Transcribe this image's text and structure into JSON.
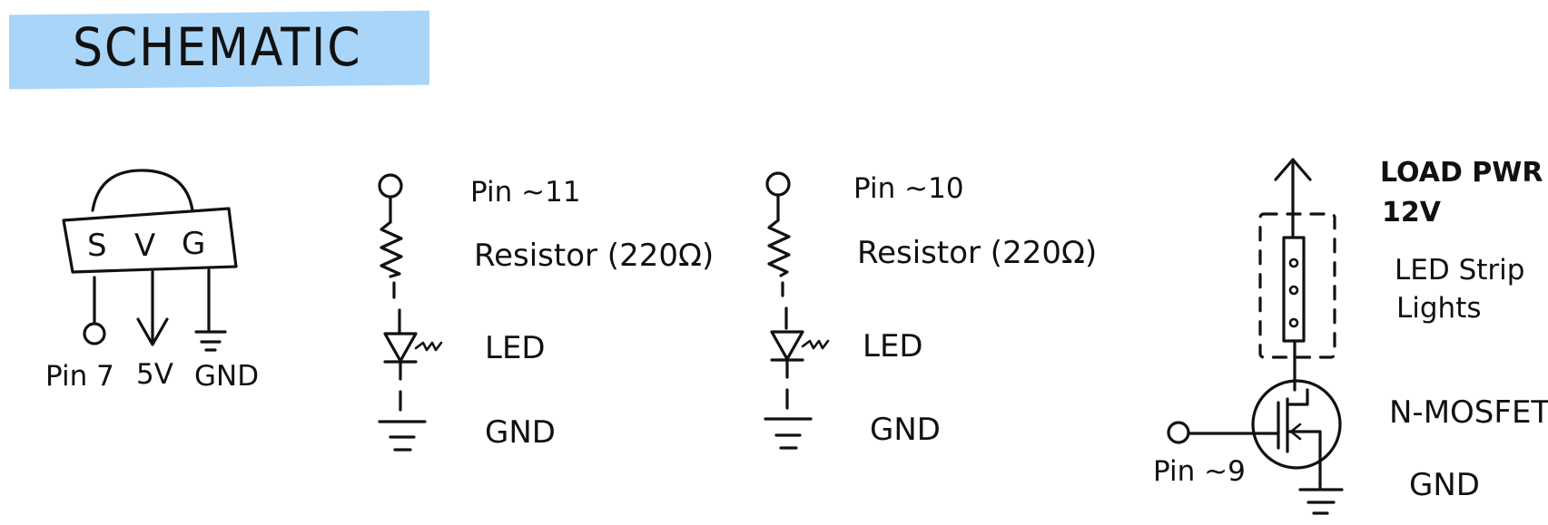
{
  "title": "SCHEMATIC",
  "sensor": {
    "pins": [
      "S",
      "V",
      "G"
    ],
    "labels": {
      "signal": "Pin 7",
      "power": "5V",
      "ground": "GND"
    }
  },
  "led_circuit_1": {
    "pin": "Pin ~11",
    "resistor": "Resistor (220Ω)",
    "led": "LED",
    "ground": "GND"
  },
  "led_circuit_2": {
    "pin": "Pin ~10",
    "resistor": "Resistor (220Ω)",
    "led": "LED",
    "ground": "GND"
  },
  "mosfet_circuit": {
    "power_line1": "LOAD PWR",
    "power_line2": "12V",
    "strip_line1": "LED Strip",
    "strip_line2": "Lights",
    "mosfet": "N-MOSFET",
    "ground": "GND",
    "gate_pin": "Pin ~9"
  }
}
